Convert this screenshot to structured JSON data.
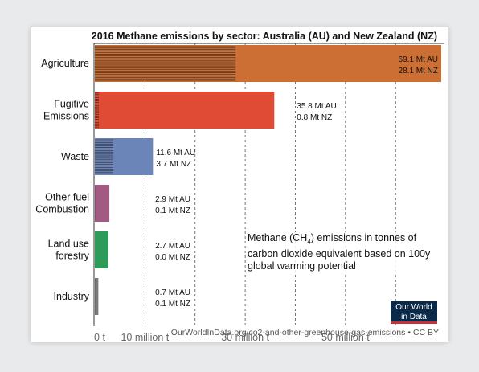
{
  "chart_data": {
    "type": "bar",
    "orientation": "horizontal",
    "title": "2016 Methane emissions by sector: Australia (AU) and New Zealand (NZ)",
    "categories": [
      "Agriculture",
      "Fugitive\nEmissions",
      "Waste",
      "Other fuel\nCombustion",
      "Land use\nforestry",
      "Industry"
    ],
    "series": [
      {
        "name": "AU",
        "values": [
          69.1,
          35.8,
          11.6,
          2.9,
          2.7,
          0.7
        ],
        "color": "#cc6f35"
      },
      {
        "name": "NZ",
        "values": [
          28.1,
          0.8,
          3.7,
          0.1,
          0.0,
          0.1
        ],
        "pattern": "horizontal-hatch"
      }
    ],
    "bar_colors": [
      "#cc6f35",
      "#e04b36",
      "#6c85b8",
      "#a35a82",
      "#2e9b5a",
      "#7a7a7a"
    ],
    "data_labels": [
      [
        "69.1 Mt AU",
        "28.1 Mt NZ"
      ],
      [
        "35.8 Mt AU",
        "0.8 Mt NZ"
      ],
      [
        "11.6 Mt AU",
        "3.7 Mt NZ"
      ],
      [
        "2.9 Mt AU",
        "0.1 Mt NZ"
      ],
      [
        "2.7 Mt AU",
        "0.0 Mt NZ"
      ],
      [
        "0.7 Mt AU",
        "0.1 Mt NZ"
      ]
    ],
    "xticks": [
      0,
      10,
      20,
      30,
      40,
      50,
      60
    ],
    "xtick_labels": [
      "0 t",
      "10 million t",
      "",
      "30 million t",
      "",
      "50 million t",
      ""
    ],
    "xlim": [
      0,
      69.1
    ],
    "grid": "vertical dashed",
    "note": {
      "before": "Methane (CH",
      "sub": "4",
      "after": ") emissions in tonnes of carbon dioxide equivalent based on 100y global warming potential"
    },
    "source": "OurWorldInData.org/co2-and-other-greenhouse-gas-emissions • CC BY",
    "logo": [
      "Our World",
      "in Data"
    ]
  }
}
